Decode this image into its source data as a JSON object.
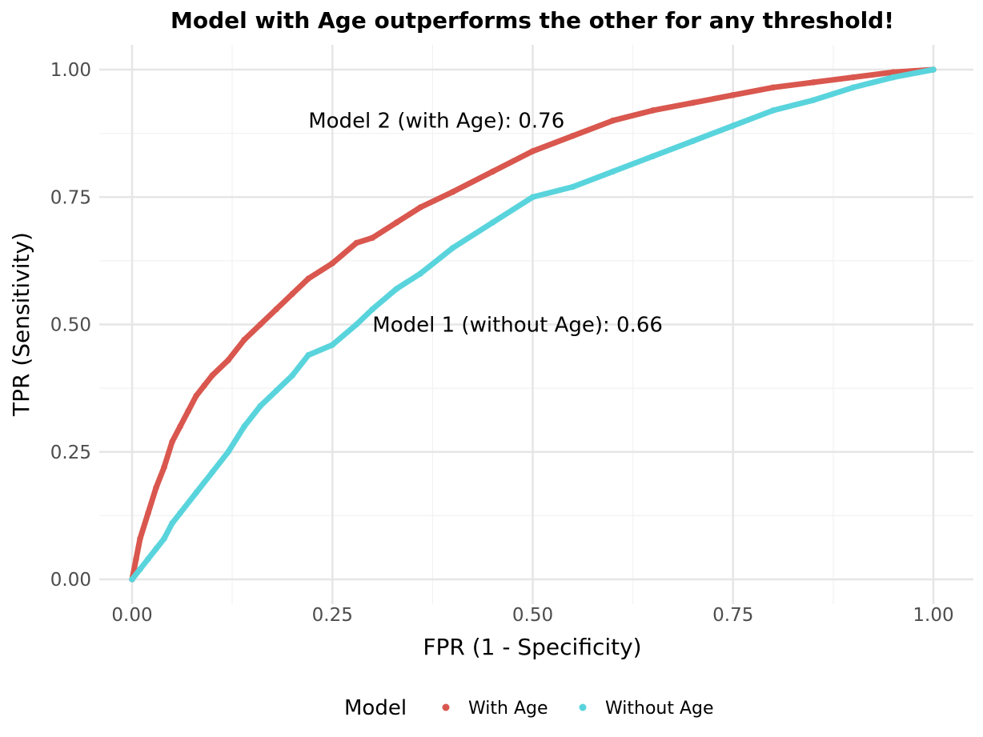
{
  "chart_data": {
    "type": "scatter",
    "title": "Model with Age outperforms the other for any threshold!",
    "xlabel": "FPR (1 - Specificity)",
    "ylabel": "TPR (Sensitivity)",
    "xlim": [
      0,
      1
    ],
    "ylim": [
      0,
      1
    ],
    "x_ticks": [
      "0.00",
      "0.25",
      "0.50",
      "0.75",
      "1.00"
    ],
    "y_ticks": [
      "0.00",
      "0.25",
      "0.50",
      "0.75",
      "1.00"
    ],
    "grid": true,
    "legend": {
      "title": "Model",
      "position": "bottom",
      "entries": [
        "With Age",
        "Without Age"
      ]
    },
    "annotations": [
      {
        "text": "Model 2 (with Age): 0.76",
        "x": 0.22,
        "y": 0.9
      },
      {
        "text": "Model 1 (without Age): 0.66",
        "x": 0.3,
        "y": 0.5
      }
    ],
    "series": [
      {
        "name": "With Age",
        "color": "#d9574e",
        "x": [
          0.0,
          0.005,
          0.01,
          0.02,
          0.03,
          0.04,
          0.05,
          0.06,
          0.07,
          0.08,
          0.09,
          0.1,
          0.12,
          0.14,
          0.16,
          0.18,
          0.2,
          0.22,
          0.25,
          0.28,
          0.3,
          0.33,
          0.36,
          0.4,
          0.45,
          0.5,
          0.55,
          0.6,
          0.65,
          0.7,
          0.75,
          0.8,
          0.85,
          0.9,
          0.95,
          1.0
        ],
        "y": [
          0.0,
          0.04,
          0.08,
          0.13,
          0.18,
          0.22,
          0.27,
          0.3,
          0.33,
          0.36,
          0.38,
          0.4,
          0.43,
          0.47,
          0.5,
          0.53,
          0.56,
          0.59,
          0.62,
          0.66,
          0.67,
          0.7,
          0.73,
          0.76,
          0.8,
          0.84,
          0.87,
          0.9,
          0.92,
          0.935,
          0.95,
          0.965,
          0.975,
          0.985,
          0.995,
          1.0
        ]
      },
      {
        "name": "Without Age",
        "color": "#59d4dc",
        "x": [
          0.0,
          0.01,
          0.02,
          0.03,
          0.04,
          0.05,
          0.06,
          0.08,
          0.1,
          0.12,
          0.14,
          0.16,
          0.18,
          0.2,
          0.22,
          0.25,
          0.28,
          0.3,
          0.33,
          0.36,
          0.4,
          0.45,
          0.5,
          0.55,
          0.6,
          0.65,
          0.7,
          0.75,
          0.8,
          0.85,
          0.9,
          0.95,
          1.0
        ],
        "y": [
          0.0,
          0.02,
          0.04,
          0.06,
          0.08,
          0.11,
          0.13,
          0.17,
          0.21,
          0.25,
          0.3,
          0.34,
          0.37,
          0.4,
          0.44,
          0.46,
          0.5,
          0.53,
          0.57,
          0.6,
          0.65,
          0.7,
          0.75,
          0.77,
          0.8,
          0.83,
          0.86,
          0.89,
          0.92,
          0.94,
          0.965,
          0.985,
          1.0
        ]
      }
    ]
  }
}
